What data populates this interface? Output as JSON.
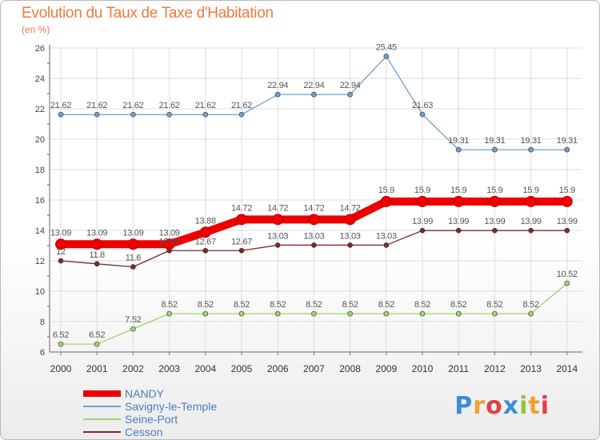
{
  "chart_data": {
    "type": "line",
    "title": "Evolution du Taux de Taxe d'Habitation",
    "subtitle": "(en %)",
    "x": [
      "2000",
      "2001",
      "2002",
      "2003",
      "2004",
      "2005",
      "2006",
      "2007",
      "2008",
      "2009",
      "2010",
      "2011",
      "2012",
      "2013",
      "2014"
    ],
    "ylim": [
      6,
      26
    ],
    "yticks": [
      6,
      8,
      10,
      12,
      14,
      16,
      18,
      20,
      22,
      24,
      26
    ],
    "grid": true,
    "legend_position": "bottom-left",
    "series": [
      {
        "name": "NANDY",
        "color": "#ee0000",
        "highlight": true,
        "values": [
          13.09,
          13.09,
          13.09,
          13.09,
          13.88,
          14.72,
          14.72,
          14.72,
          14.72,
          15.9,
          15.9,
          15.9,
          15.9,
          15.9,
          15.9
        ],
        "labels": [
          "13.09",
          "13.09",
          "13.09",
          "13.09",
          "13.88",
          "14.72",
          "14.72",
          "14.72",
          "14.72",
          "15.9",
          "15.9",
          "15.9",
          "15.9",
          "15.9",
          "15.9"
        ]
      },
      {
        "name": "Savigny-le-Temple",
        "color": "#6fa0cf",
        "values": [
          21.62,
          21.62,
          21.62,
          21.62,
          21.62,
          21.62,
          22.94,
          22.94,
          22.94,
          25.45,
          21.63,
          19.31,
          19.31,
          19.31,
          19.31
        ],
        "labels": [
          "21.62",
          "21.62",
          "21.62",
          "21.62",
          "21.62",
          "21.62",
          "22.94",
          "22.94",
          "22.94",
          "25.45",
          "21.63",
          "19.31",
          "19.31",
          "19.31",
          "19.31"
        ]
      },
      {
        "name": "Seine-Port",
        "color": "#9fd66d",
        "values": [
          6.52,
          6.52,
          7.52,
          8.52,
          8.52,
          8.52,
          8.52,
          8.52,
          8.52,
          8.52,
          8.52,
          8.52,
          8.52,
          8.52,
          10.52
        ],
        "labels": [
          "6.52",
          "6.52",
          "7.52",
          "8.52",
          "8.52",
          "8.52",
          "8.52",
          "8.52",
          "8.52",
          "8.52",
          "8.52",
          "8.52",
          "8.52",
          "8.52",
          "10.52"
        ]
      },
      {
        "name": "Cesson",
        "color": "#7a2a2a",
        "values": [
          12,
          11.8,
          11.6,
          12.67,
          12.67,
          12.67,
          13.03,
          13.03,
          13.03,
          13.03,
          13.99,
          13.99,
          13.99,
          13.99,
          13.99
        ],
        "labels": [
          "12",
          "11.8",
          "11.6",
          "12.67",
          "12.67",
          "12.67",
          "13.03",
          "13.03",
          "13.03",
          "13.03",
          "13.99",
          "13.99",
          "13.99",
          "13.99",
          "13.99"
        ]
      }
    ]
  },
  "logo": {
    "letters": [
      "P",
      "r",
      "o",
      "x",
      "i",
      "t",
      "i"
    ],
    "colors": [
      "#3c8fd6",
      "#f0a030",
      "#e04040",
      "#3c8fd6",
      "#8cc63f",
      "#f0a030",
      "#e04040"
    ]
  }
}
